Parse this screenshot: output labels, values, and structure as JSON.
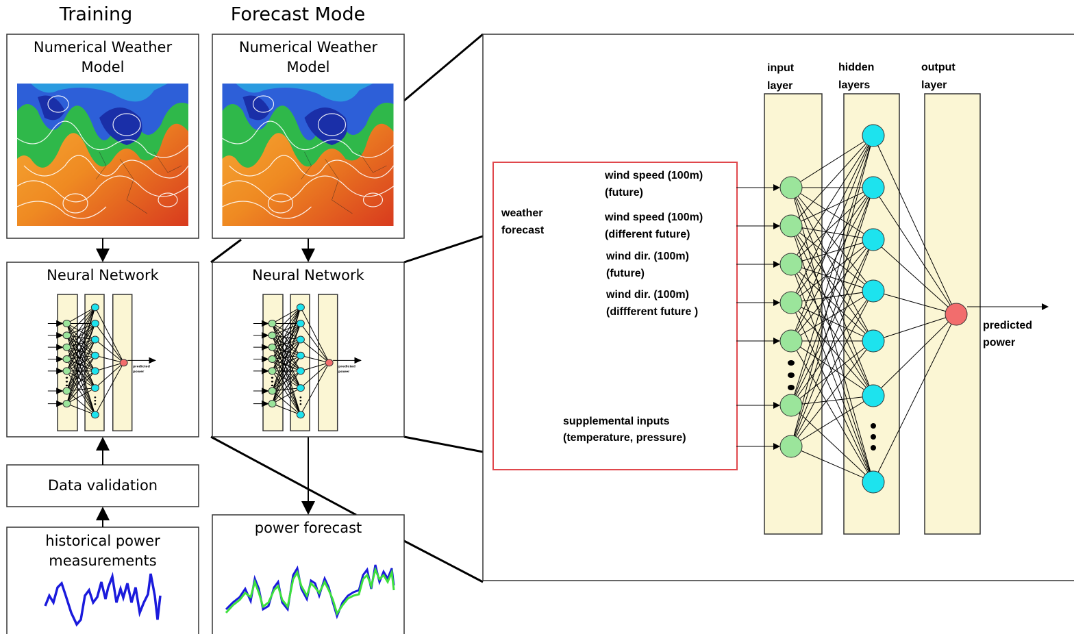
{
  "training": {
    "title": "Training",
    "nwm": [
      "Numerical Weather",
      "Model"
    ],
    "nn": "Neural Network",
    "validation": "Data validation",
    "history": [
      "historical power",
      "measurements"
    ]
  },
  "forecast": {
    "title": "Forecast Mode",
    "nwm": [
      "Numerical Weather",
      "Model"
    ],
    "nn": "Neural Network",
    "output": "power forecast"
  },
  "network": {
    "layers": [
      [
        "input",
        "layer"
      ],
      [
        "hidden",
        "layers"
      ],
      [
        "output",
        "layer"
      ]
    ],
    "weather_forecast": [
      "weather",
      "forecast"
    ],
    "inputs": [
      [
        "wind speed (100m)",
        "(future)"
      ],
      [
        "wind speed (100m)",
        "(different future)"
      ],
      [
        "wind dir.  (100m)",
        "(future)"
      ],
      [
        "wind dir. (100m)",
        "(diffferent future )"
      ]
    ],
    "supplemental": [
      "supplemental inputs",
      "(temperature, pressure)"
    ],
    "output": [
      "predicted",
      "power"
    ]
  }
}
